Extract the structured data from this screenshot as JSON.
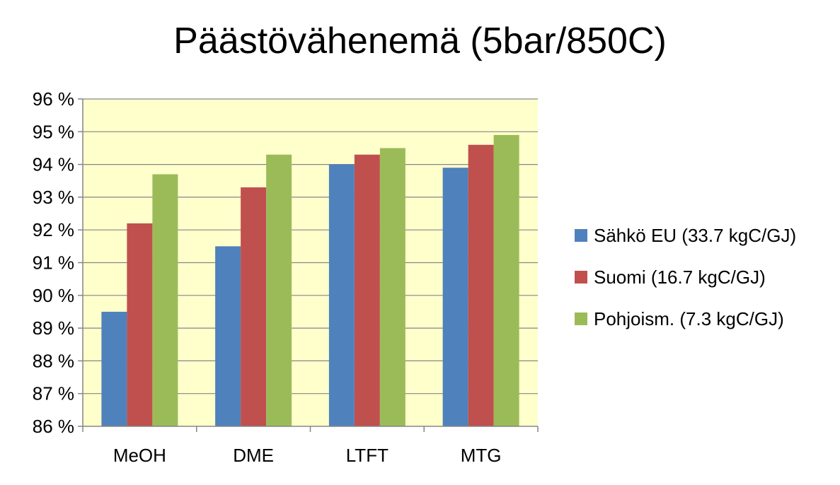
{
  "chart_data": {
    "type": "bar",
    "title": "Päästövähenemä (5bar/850C)",
    "xlabel": "",
    "ylabel": "",
    "categories": [
      "MeOH",
      "DME",
      "LTFT",
      "MTG"
    ],
    "ylim": [
      86,
      96
    ],
    "yticks": [
      86,
      87,
      88,
      89,
      90,
      91,
      92,
      93,
      94,
      95,
      96
    ],
    "ytick_labels": [
      "86 %",
      "87 %",
      "88 %",
      "89 %",
      "90 %",
      "91 %",
      "92 %",
      "93 %",
      "94 %",
      "95 %",
      "96 %"
    ],
    "grid": true,
    "legend_position": "right",
    "plot_background": "#FFFFCC",
    "series": [
      {
        "name": "Sähkö EU (33.7 kgC/GJ)",
        "color": "#4F81BD",
        "values": [
          89.5,
          91.5,
          94.0,
          93.9
        ]
      },
      {
        "name": "Suomi (16.7 kgC/GJ)",
        "color": "#C0504D",
        "values": [
          92.2,
          93.3,
          94.3,
          94.6
        ]
      },
      {
        "name": "Pohjoism. (7.3 kgC/GJ)",
        "color": "#9BBB59",
        "values": [
          93.7,
          94.3,
          94.5,
          94.9
        ]
      }
    ]
  }
}
